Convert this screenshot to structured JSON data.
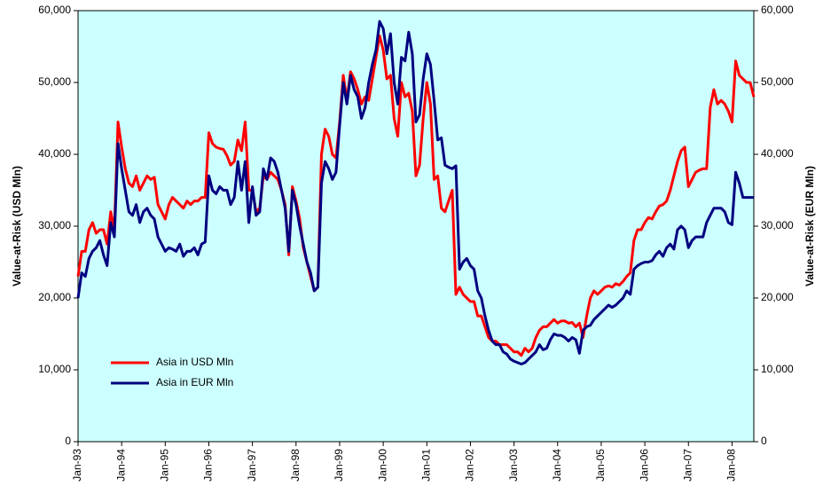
{
  "chart_data": {
    "type": "line",
    "y_label": "Value-at-Risk (USD Mln)",
    "y2_label": "Value-at-Risk (EUR Mln)",
    "categories": [
      "Jan-93",
      null,
      null,
      null,
      null,
      null,
      null,
      null,
      null,
      null,
      null,
      null,
      "Jan-94",
      null,
      null,
      null,
      null,
      null,
      null,
      null,
      null,
      null,
      null,
      null,
      "Jan-95",
      null,
      null,
      null,
      null,
      null,
      null,
      null,
      null,
      null,
      null,
      null,
      "Jan-96",
      null,
      null,
      null,
      null,
      null,
      null,
      null,
      null,
      null,
      null,
      null,
      "Jan-97",
      null,
      null,
      null,
      null,
      null,
      null,
      null,
      null,
      null,
      null,
      null,
      "Jan-98",
      null,
      null,
      null,
      null,
      null,
      null,
      null,
      null,
      null,
      null,
      null,
      "Jan-99",
      null,
      null,
      null,
      null,
      null,
      null,
      null,
      null,
      null,
      null,
      null,
      "Jan-00",
      null,
      null,
      null,
      null,
      null,
      null,
      null,
      null,
      null,
      null,
      null,
      "Jan-01",
      null,
      null,
      null,
      null,
      null,
      null,
      null,
      null,
      null,
      null,
      null,
      "Jan-02",
      null,
      null,
      null,
      null,
      null,
      null,
      null,
      null,
      null,
      null,
      null,
      "Jan-03",
      null,
      null,
      null,
      null,
      null,
      null,
      null,
      null,
      null,
      null,
      null,
      "Jan-04",
      null,
      null,
      null,
      null,
      null,
      null,
      null,
      null,
      null,
      null,
      null,
      "Jan-05",
      null,
      null,
      null,
      null,
      null,
      null,
      null,
      null,
      null,
      null,
      null,
      "Jan-06",
      null,
      null,
      null,
      null,
      null,
      null,
      null,
      null,
      null,
      null,
      null,
      "Jan-07",
      null,
      null,
      null,
      null,
      null,
      null,
      null,
      null,
      null,
      null,
      null,
      "Jan-08",
      null,
      null,
      null,
      null,
      null,
      null
    ],
    "series": [
      {
        "name": "Asia in USD Mln",
        "color": "#ff0000",
        "axis": "y",
        "values": [
          23000,
          26500,
          26500,
          29500,
          30500,
          29000,
          29500,
          29500,
          27500,
          32000,
          29500,
          44500,
          41000,
          38000,
          36000,
          35500,
          37000,
          35000,
          36000,
          37000,
          36500,
          36800,
          33000,
          32000,
          31000,
          33000,
          34000,
          33500,
          33000,
          32500,
          33500,
          33000,
          33500,
          33500,
          34000,
          34000,
          43000,
          41500,
          41000,
          40800,
          40700,
          39800,
          38500,
          39000,
          42000,
          40500,
          44500,
          35000,
          35000,
          32000,
          32500,
          37000,
          36500,
          37500,
          37000,
          36500,
          35000,
          33000,
          26000,
          35500,
          33500,
          31000,
          27000,
          25000,
          23000,
          21000,
          21500,
          40000,
          43500,
          42500,
          40000,
          39500,
          44500,
          51000,
          47500,
          51500,
          50500,
          49000,
          47000,
          48000,
          47500,
          50500,
          53500,
          56500,
          54500,
          50500,
          51000,
          45000,
          42500,
          50000,
          48000,
          48500,
          46000,
          37000,
          38500,
          45000,
          50000,
          47000,
          36500,
          37000,
          32500,
          32000,
          33500,
          35000,
          20500,
          21500,
          20500,
          20000,
          19500,
          19500,
          17500,
          17500,
          16000,
          14500,
          14000,
          14000,
          13500,
          13500,
          13500,
          13000,
          12500,
          12500,
          12000,
          13000,
          12500,
          13000,
          14500,
          15500,
          16000,
          16000,
          16500,
          17000,
          16500,
          16800,
          16800,
          16500,
          16600,
          16000,
          16500,
          14500,
          17500,
          20000,
          21000,
          20500,
          21000,
          21500,
          21700,
          21500,
          22000,
          21800,
          22300,
          23000,
          23500,
          28000,
          29500,
          29500,
          30500,
          31200,
          31000,
          32000,
          32800,
          33000,
          33500,
          35000,
          37000,
          39000,
          40500,
          41000,
          35500,
          36500,
          37500,
          37800,
          38000,
          38000,
          46500,
          49000,
          47000,
          47500,
          47000,
          46000,
          44500,
          53000,
          51000,
          50500,
          50000,
          50000,
          48000
        ]
      },
      {
        "name": "Asia in EUR Mln",
        "color": "#000080",
        "axis": "y2",
        "values": [
          20000,
          23500,
          23000,
          25500,
          26500,
          27000,
          28000,
          26000,
          24500,
          30500,
          28500,
          41500,
          38000,
          35000,
          32000,
          31500,
          33000,
          30500,
          32000,
          32500,
          31500,
          31000,
          28500,
          27500,
          26500,
          27000,
          26800,
          26500,
          27500,
          25800,
          26500,
          26500,
          27000,
          26000,
          27500,
          27800,
          37000,
          35000,
          34500,
          35500,
          35000,
          35000,
          33000,
          34000,
          39000,
          35000,
          39000,
          30500,
          35500,
          31500,
          32000,
          38000,
          36500,
          39500,
          39000,
          37500,
          35000,
          32500,
          26500,
          35000,
          33000,
          30000,
          27500,
          25000,
          23500,
          21000,
          21500,
          36000,
          39000,
          38000,
          36500,
          37500,
          44000,
          50000,
          47000,
          51000,
          49000,
          48000,
          45000,
          46500,
          50000,
          52500,
          54500,
          58500,
          57500,
          54000,
          56800,
          50000,
          47000,
          53500,
          53000,
          57000,
          54000,
          44500,
          45500,
          50500,
          54000,
          52500,
          47500,
          42000,
          42300,
          38500,
          38200,
          38000,
          38400,
          24000,
          25000,
          25500,
          24500,
          24000,
          21000,
          20000,
          17500,
          15500,
          14000,
          13500,
          13500,
          12500,
          12200,
          11500,
          11200,
          11000,
          10800,
          11000,
          11500,
          12000,
          12500,
          13500,
          12800,
          13000,
          14200,
          15000,
          14800,
          14800,
          14500,
          14000,
          14500,
          14200,
          12300,
          15500,
          16000,
          16200,
          17000,
          17500,
          18000,
          18500,
          19000,
          18700,
          19000,
          19500,
          20000,
          21000,
          20500,
          24000,
          24500,
          24800,
          25000,
          25000,
          25200,
          26000,
          26500,
          25800,
          27000,
          27500,
          26800,
          29500,
          30000,
          29500,
          27000,
          28000,
          28500,
          28500,
          28500,
          30500,
          31500,
          32500,
          32500,
          32500,
          32000,
          30500,
          30200,
          37500,
          36000,
          34000,
          34000,
          34000,
          34000
        ]
      }
    ],
    "ylim": [
      0,
      60000
    ],
    "yticks": [
      0,
      {
        "value": 10000,
        "label": "10,000"
      },
      {
        "value": 20000,
        "label": "20,000"
      },
      {
        "value": 30000,
        "label": "30,000"
      },
      {
        "value": 40000,
        "label": "40,000"
      },
      {
        "value": 50000,
        "label": "50,000"
      },
      {
        "value": 60000,
        "label": "60,000"
      }
    ],
    "y2lim": [
      0,
      60000
    ],
    "y2ticks": [
      0,
      {
        "value": 10000,
        "label": "10,000"
      },
      {
        "value": 20000,
        "label": "20,000"
      },
      {
        "value": 30000,
        "label": "30,000"
      },
      {
        "value": 40000,
        "label": "40,000"
      },
      {
        "value": 50000,
        "label": "50,000"
      },
      {
        "value": 60000,
        "label": "60,000"
      }
    ],
    "plot_background": "#ccffff",
    "legend": "lower left"
  }
}
